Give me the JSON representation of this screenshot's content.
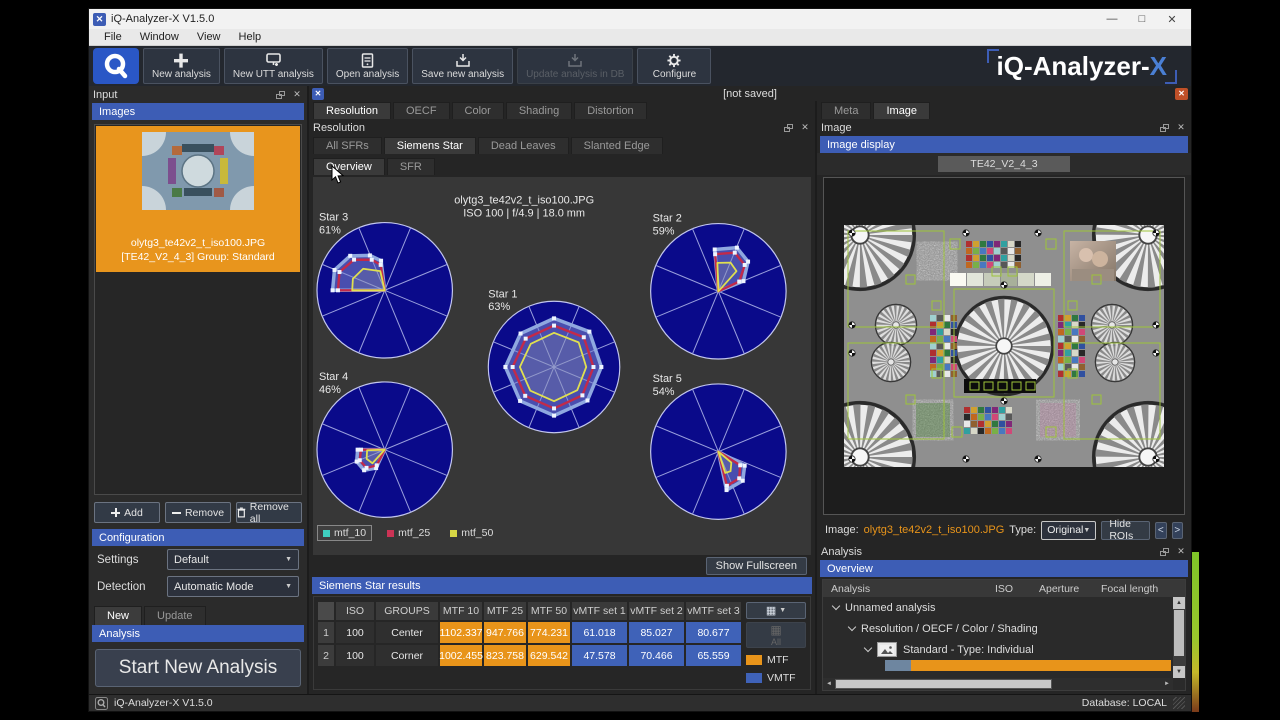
{
  "colors": {
    "accent_blue": "#3d5db5",
    "mtf_orange": "#e8941a",
    "vmtf_blue": "#3f62b8",
    "selected_orange": "#e8951d",
    "star_navy": "#0a0a8a"
  },
  "window": {
    "title": "iQ-Analyzer-X V1.5.0",
    "minimize": "—",
    "maximize": "□",
    "close": "✕"
  },
  "menu": {
    "items": [
      "File",
      "Window",
      "View",
      "Help"
    ]
  },
  "toolbar": {
    "buttons": [
      "New analysis",
      "New UTT analysis",
      "Open analysis",
      "Save new analysis",
      "Update analysis in DB",
      "Configure"
    ],
    "brand_prefix": "iQ-Analyzer-",
    "brand_suffix": "X"
  },
  "input": {
    "title": "Input",
    "images_header": "Images",
    "item_line1": "olytg3_te42v2_t_iso100.JPG",
    "item_line2": "[TE42_V2_4_3] Group: Standard",
    "add": "Add",
    "remove": "Remove",
    "remove_all": "Remove all",
    "config_header": "Configuration",
    "settings_label": "Settings",
    "settings_value": "Default",
    "detection_label": "Detection",
    "detection_value": "Automatic Mode",
    "tab_new": "New",
    "tab_update": "Update",
    "analysis_header": "Analysis",
    "start_button": "Start New Analysis"
  },
  "doc": {
    "not_saved": "[not saved]"
  },
  "center": {
    "tabs": [
      "Resolution",
      "OECF",
      "Color",
      "Shading",
      "Distortion"
    ],
    "panel_title": "Resolution",
    "subtabs": [
      "All SFRs",
      "Siemens Star",
      "Dead Leaves",
      "Slanted Edge"
    ],
    "viewtabs": [
      "Overview",
      "SFR"
    ],
    "fullscreen": "Show Fullscreen",
    "results_header": "Siemens Star results",
    "columns": [
      "ISO",
      "GROUPS",
      "MTF 10",
      "MTF 25",
      "MTF 50",
      "vMTF set 1",
      "vMTF set 2",
      "vMTF set 3"
    ],
    "rows": [
      {
        "n": "1",
        "iso": "100",
        "group": "Center",
        "m1": "1102.337",
        "m2": "947.766",
        "m3": "774.231",
        "v1": "61.018",
        "v2": "85.027",
        "v3": "80.677"
      },
      {
        "n": "2",
        "iso": "100",
        "group": "Corner",
        "m1": "1002.455",
        "m2": "823.758",
        "m3": "629.542",
        "v1": "47.578",
        "v2": "70.466",
        "v3": "65.559"
      }
    ],
    "legend_mtf": "MTF",
    "legend_vmtf": "VMTF",
    "table_btn_all": "All"
  },
  "chart_data": {
    "type": "polar-siemens-star-overview",
    "title": "olytg3_te42v2_t_iso100.JPG",
    "subtitle": "ISO 100 | f/4.9 | 18.0 mm",
    "legend": [
      {
        "name": "mtf_10",
        "color": "#3fd0c0",
        "selected": true
      },
      {
        "name": "mtf_25",
        "color": "#cc3355",
        "selected": false
      },
      {
        "name": "mtf_50",
        "color": "#d6d645",
        "selected": false
      }
    ],
    "stars": [
      {
        "name": "Star 3",
        "percent": "61%",
        "type": "wedge",
        "series": {
          "mtf_10": [
            [
              97,
              0.44
            ],
            [
              113,
              0.56
            ],
            [
              135,
              0.72
            ],
            [
              158,
              0.8
            ],
            [
              180,
              0.77
            ]
          ],
          "mtf_25": [
            [
              99,
              0.38
            ],
            [
              113,
              0.49
            ],
            [
              135,
              0.64
            ],
            [
              158,
              0.72
            ],
            [
              180,
              0.69
            ]
          ],
          "mtf_50": [
            [
              103,
              0.29
            ],
            [
              135,
              0.45
            ],
            [
              160,
              0.5
            ],
            [
              180,
              0.48
            ]
          ]
        }
      },
      {
        "name": "Star 2",
        "percent": "59%",
        "type": "wedge",
        "series": {
          "mtf_10": [
            [
              95,
              0.62
            ],
            [
              67,
              0.7
            ],
            [
              45,
              0.62
            ],
            [
              22,
              0.4
            ]
          ],
          "mtf_25": [
            [
              95,
              0.55
            ],
            [
              67,
              0.62
            ],
            [
              45,
              0.55
            ],
            [
              25,
              0.34
            ]
          ],
          "mtf_50": [
            [
              92,
              0.42
            ],
            [
              67,
              0.46
            ],
            [
              48,
              0.4
            ]
          ]
        }
      },
      {
        "name": "Star 1",
        "percent": "63%",
        "type": "closed",
        "series": {
          "mtf_10": [
            [
              90,
              0.74
            ],
            [
              45,
              0.76
            ],
            [
              0,
              0.72
            ],
            [
              -45,
              0.72
            ],
            [
              -90,
              0.74
            ],
            [
              -135,
              0.73
            ],
            [
              180,
              0.74
            ],
            [
              135,
              0.72
            ]
          ],
          "mtf_25": [
            [
              90,
              0.63
            ],
            [
              45,
              0.64
            ],
            [
              0,
              0.6
            ],
            [
              -45,
              0.61
            ],
            [
              -90,
              0.63
            ],
            [
              -135,
              0.62
            ],
            [
              180,
              0.63
            ],
            [
              135,
              0.61
            ]
          ],
          "mtf_50": [
            [
              90,
              0.52
            ],
            [
              45,
              0.53
            ],
            [
              0,
              0.49
            ],
            [
              -45,
              0.5
            ],
            [
              -90,
              0.52
            ],
            [
              -135,
              0.51
            ],
            [
              180,
              0.52
            ],
            [
              135,
              0.5
            ]
          ]
        }
      },
      {
        "name": "Star 4",
        "percent": "46%",
        "type": "wedge",
        "series": {
          "mtf_10": [
            [
              180,
              0.4
            ],
            [
              203,
              0.45
            ],
            [
              225,
              0.43
            ],
            [
              245,
              0.3
            ]
          ],
          "mtf_25": [
            [
              180,
              0.35
            ],
            [
              203,
              0.4
            ],
            [
              225,
              0.38
            ],
            [
              243,
              0.26
            ]
          ],
          "mtf_50": [
            [
              182,
              0.26
            ],
            [
              207,
              0.3
            ],
            [
              228,
              0.27
            ]
          ]
        }
      },
      {
        "name": "Star 5",
        "percent": "54%",
        "type": "wedge",
        "series": {
          "mtf_10": [
            [
              -28,
              0.44
            ],
            [
              -50,
              0.56
            ],
            [
              -78,
              0.58
            ]
          ],
          "mtf_25": [
            [
              -32,
              0.38
            ],
            [
              -52,
              0.5
            ],
            [
              -76,
              0.52
            ]
          ],
          "mtf_50": [
            [
              -40,
              0.25
            ],
            [
              -58,
              0.34
            ],
            [
              -72,
              0.33
            ]
          ]
        }
      }
    ]
  },
  "image_panel": {
    "tab_meta": "Meta",
    "tab_image": "Image",
    "panel_title": "Image",
    "display_header": "Image display",
    "chart_name": "TE42_V2_4_3",
    "image_label": "Image:",
    "image_file": "olytg3_te42v2_t_iso100.JPG",
    "type_label": "Type:",
    "type_value": "Original",
    "hide_rois": "Hide ROIs",
    "prev": "<",
    "next": ">"
  },
  "analysis": {
    "panel_title": "Analysis",
    "overview_header": "Overview",
    "col_analysis": "Analysis",
    "col_iso": "ISO",
    "col_aperture": "Aperture",
    "col_focal": "Focal length",
    "node1": "Unnamed analysis",
    "node2": "Resolution / OECF / Color / Shading",
    "node3": "Standard - Type: Individual"
  },
  "statusbar": {
    "app": "iQ-Analyzer-X V1.5.0",
    "database": "Database: LOCAL"
  }
}
